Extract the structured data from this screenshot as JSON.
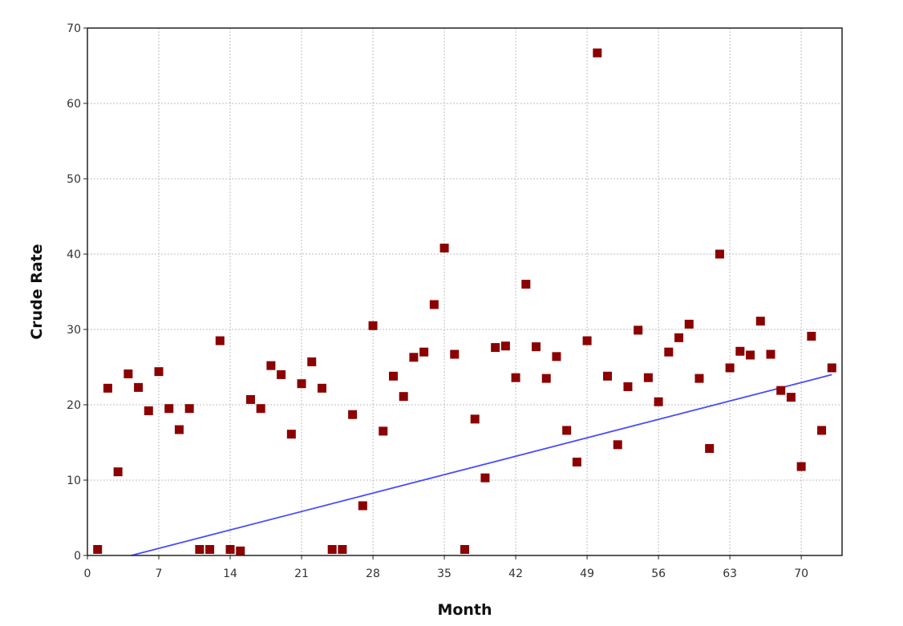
{
  "chart_data": {
    "type": "scatter",
    "title": "",
    "xlabel": "Month",
    "ylabel": "Crude Rate",
    "xlim": [
      0,
      74
    ],
    "ylim": [
      0,
      70
    ],
    "xticks": [
      0,
      7,
      14,
      21,
      28,
      35,
      42,
      49,
      56,
      63,
      70
    ],
    "yticks": [
      0,
      10,
      20,
      30,
      40,
      50,
      60,
      70
    ],
    "grid": true,
    "legend": "none",
    "colors": {
      "points": "#8b0000",
      "trend": "#4a4aff",
      "frame": "#222222",
      "grid": "#bdbdbd"
    },
    "series": [
      {
        "type": "scatter",
        "x": [
          1,
          2,
          3,
          4,
          5,
          6,
          7,
          8,
          9,
          10,
          11,
          12,
          13,
          14,
          15,
          16,
          17,
          18,
          19,
          20,
          21,
          22,
          23,
          24,
          25,
          26,
          27,
          28,
          29,
          30,
          31,
          32,
          33,
          34,
          35,
          36,
          37,
          38,
          39,
          40,
          41,
          42,
          43,
          44,
          45,
          46,
          47,
          48,
          49,
          50,
          51,
          52,
          53,
          54,
          55,
          56,
          57,
          58,
          59,
          60,
          61,
          62,
          63,
          64,
          65,
          66,
          67,
          68,
          69,
          70,
          71,
          72,
          73
        ],
        "y": [
          0.8,
          22.2,
          11.1,
          24.1,
          22.3,
          19.2,
          24.4,
          19.5,
          16.7,
          19.5,
          0.8,
          0.8,
          28.5,
          0.8,
          0.6,
          20.7,
          19.5,
          25.2,
          24.0,
          16.1,
          22.8,
          25.7,
          22.2,
          0.8,
          0.8,
          18.7,
          6.6,
          30.5,
          16.5,
          23.8,
          21.1,
          26.3,
          27.0,
          33.3,
          40.8,
          26.7,
          0.8,
          18.1,
          10.3,
          27.6,
          27.8,
          23.6,
          36.0,
          27.7,
          23.5,
          26.4,
          16.6,
          12.4,
          28.5,
          66.7,
          23.8,
          14.7,
          22.4,
          29.9,
          23.6,
          20.4,
          27.0,
          28.9,
          30.7,
          23.5,
          14.2,
          40.0,
          24.9,
          27.1,
          26.6,
          31.1,
          26.7,
          21.9,
          21.0,
          11.8,
          29.1,
          16.6,
          24.9
        ]
      },
      {
        "type": "line",
        "x": [
          4.3,
          73
        ],
        "y": [
          0,
          24
        ]
      }
    ]
  }
}
